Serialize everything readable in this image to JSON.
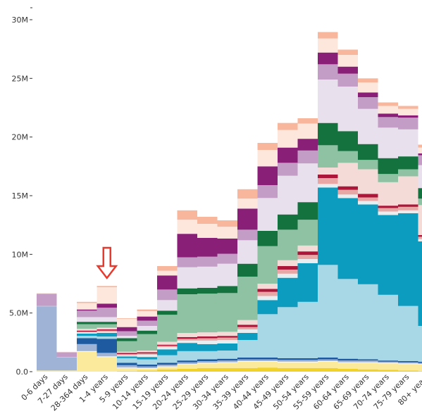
{
  "chart_data": {
    "type": "bar",
    "stacked": true,
    "ylim": [
      0,
      31000000
    ],
    "y_ticks": [
      {
        "value": 0,
        "label": "0.0"
      },
      {
        "value": 5000000,
        "label": "5.0M"
      },
      {
        "value": 10000000,
        "label": "10M"
      },
      {
        "value": 15000000,
        "label": "15M"
      },
      {
        "value": 20000000,
        "label": "20M"
      },
      {
        "value": 25000000,
        "label": "25M"
      },
      {
        "value": 30000000,
        "label": "30M"
      }
    ],
    "categories": [
      "0-6 days",
      "7-27 days",
      "28-364 days",
      "1-4 years",
      "5-9 years",
      "10-14 years",
      "15-19 years",
      "20-24 years",
      "25-29 years",
      "30-34 years",
      "35-39 years",
      "40-44 years",
      "45-49 years",
      "50-54 years",
      "55-59 years",
      "60-64 years",
      "65-69 years",
      "70-74 years",
      "75-79 years",
      "80+ years"
    ],
    "annotation": {
      "type": "arrow-down",
      "category": "1-4 years",
      "color": "#e8392f"
    },
    "series": [
      {
        "color": "#f1d22b",
        "values": [
          0,
          0,
          0,
          0,
          0.05,
          0.1,
          0.2,
          0.25,
          0.3,
          0.3,
          0.3,
          0.35,
          0.3,
          0.3,
          0.3,
          0.25,
          0.2,
          0.15,
          0.1,
          0.05
        ]
      },
      {
        "color": "#fcea9c",
        "values": [
          0.1,
          0.1,
          1.7,
          1.25,
          0.25,
          0.15,
          0.2,
          0.35,
          0.4,
          0.45,
          0.55,
          0.5,
          0.5,
          0.5,
          0.55,
          0.5,
          0.55,
          0.55,
          0.55,
          0.55
        ]
      },
      {
        "color": "#ffffff",
        "values": [
          0,
          0,
          0.05,
          0.05,
          0.05,
          0.05,
          0.05,
          0.05,
          0.05,
          0.05,
          0.05,
          0.05,
          0.05,
          0.05,
          0.05,
          0.05,
          0.05,
          0.05,
          0.05,
          0.05
        ]
      },
      {
        "color": "#9fb3d6",
        "values": [
          5.45,
          1.1,
          0.6,
          0.3,
          0.2,
          0.15,
          0.15,
          0.15,
          0.15,
          0.15,
          0.15,
          0.15,
          0.15,
          0.15,
          0.15,
          0.15,
          0.15,
          0.1,
          0.1,
          0.1
        ]
      },
      {
        "color": "#1d5aa0",
        "values": [
          0,
          0,
          0.5,
          1.2,
          0.2,
          0.15,
          0.15,
          0.15,
          0.15,
          0.15,
          0.15,
          0.15,
          0.15,
          0.15,
          0.15,
          0.15,
          0.1,
          0.1,
          0.1,
          0.1
        ]
      },
      {
        "color": "#a8d8e6",
        "values": [
          0.05,
          0.05,
          0.2,
          0.2,
          0.4,
          0.45,
          0.65,
          0.8,
          0.7,
          0.7,
          1.5,
          3.7,
          4.35,
          4.8,
          7.9,
          6.8,
          6.4,
          5.6,
          4.7,
          3.05
        ]
      },
      {
        "color": "#0b9cc0",
        "values": [
          0,
          0,
          0.2,
          0.3,
          0.15,
          0.2,
          0.5,
          0.7,
          0.6,
          0.6,
          0.6,
          1.2,
          2.5,
          3.3,
          6.6,
          6.9,
          6.8,
          6.8,
          7.9,
          7.2
        ]
      },
      {
        "color": "#e8eef0",
        "values": [
          0,
          0,
          0.1,
          0.1,
          0.1,
          0.2,
          0.2,
          0.2,
          0.3,
          0.3,
          0.3,
          0.35,
          0.35,
          0.35,
          0.3,
          0.3,
          0.3,
          0.3,
          0.25,
          0.2
        ]
      },
      {
        "color": "#e8a7a5",
        "values": [
          0,
          0,
          0.05,
          0.1,
          0.1,
          0.1,
          0.1,
          0.15,
          0.2,
          0.2,
          0.2,
          0.35,
          0.35,
          0.35,
          0.5,
          0.4,
          0.3,
          0.3,
          0.3,
          0.2
        ]
      },
      {
        "color": "#ac1638",
        "values": [
          0,
          0,
          0.1,
          0.1,
          0.1,
          0.1,
          0.1,
          0.15,
          0.15,
          0.15,
          0.2,
          0.25,
          0.3,
          0.3,
          0.3,
          0.3,
          0.3,
          0.2,
          0.2,
          0.15
        ]
      },
      {
        "color": "#f4dbd8",
        "values": [
          0,
          0,
          0.15,
          0.15,
          0.1,
          0.15,
          0.25,
          0.35,
          0.35,
          0.35,
          0.4,
          0.45,
          0.5,
          0.5,
          0.6,
          2.0,
          2.1,
          2.0,
          2.4,
          2.55
        ]
      },
      {
        "color": "#8fc1a3",
        "values": [
          0,
          0,
          0.4,
          0.3,
          0.9,
          1.4,
          2.3,
          3.3,
          3.3,
          3.3,
          3.7,
          3.2,
          2.6,
          2.2,
          1.9,
          1.0,
          0.8,
          0.7,
          0.6,
          0.55
        ]
      },
      {
        "color": "#13723e",
        "values": [
          0,
          0,
          0.2,
          0.2,
          0.25,
          0.3,
          0.35,
          0.5,
          0.5,
          0.6,
          1.1,
          1.3,
          1.3,
          1.5,
          1.9,
          1.7,
          1.35,
          1.35,
          1.1,
          0.9
        ]
      },
      {
        "color": "#e9e0ee",
        "values": [
          0,
          0,
          0.4,
          0.4,
          0.2,
          0.4,
          0.9,
          1.8,
          1.8,
          1.9,
          2.0,
          2.8,
          3.3,
          3.3,
          3.7,
          3.8,
          3.0,
          2.6,
          2.3,
          1.95
        ]
      },
      {
        "color": "#c49dc7",
        "values": [
          1.05,
          0.4,
          0.55,
          0.8,
          0.4,
          0.45,
          0.9,
          0.85,
          0.85,
          0.85,
          0.9,
          1.1,
          1.1,
          1.1,
          1.3,
          1.1,
          1.0,
          0.9,
          1.0,
          0.85
        ]
      },
      {
        "color": "#891f77",
        "values": [
          0,
          0,
          0.1,
          0.35,
          0.35,
          0.35,
          1.2,
          2.0,
          1.6,
          1.3,
          1.8,
          1.6,
          1.3,
          1.0,
          1.0,
          0.6,
          0.4,
          0.3,
          0.2,
          0.15
        ]
      },
      {
        "color": "#fde7dd",
        "values": [
          0.05,
          0.05,
          0.55,
          1.4,
          0.7,
          0.45,
          0.4,
          1.2,
          1.2,
          1.0,
          0.85,
          1.4,
          1.5,
          1.3,
          1.2,
          1.0,
          0.85,
          0.65,
          0.55,
          0.5
        ]
      },
      {
        "color": "#f8b69c",
        "values": [
          0,
          0,
          0.1,
          0.1,
          0.05,
          0.15,
          0.4,
          0.8,
          0.6,
          0.55,
          0.8,
          0.6,
          0.6,
          0.45,
          0.55,
          0.45,
          0.35,
          0.3,
          0.25,
          0.25
        ]
      }
    ]
  }
}
